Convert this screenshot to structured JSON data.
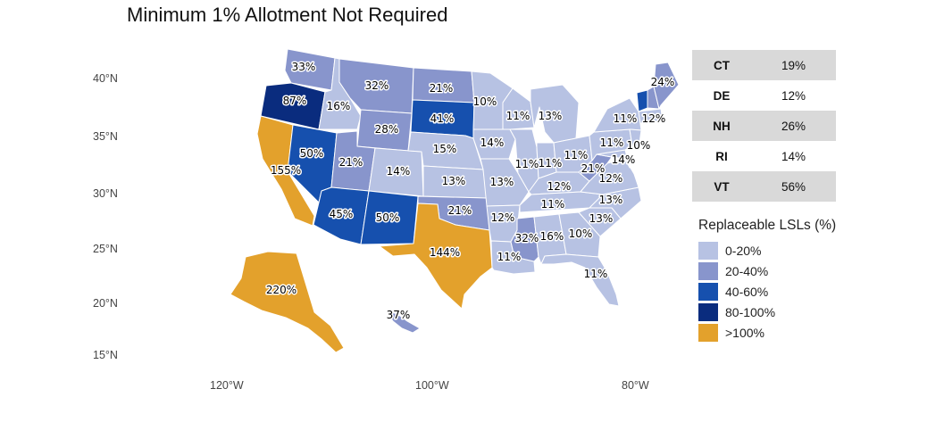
{
  "title": "Minimum 1% Allotment Not Required",
  "axes": {
    "y_ticks": [
      "40°N",
      "35°N",
      "30°N",
      "25°N",
      "20°N",
      "15°N"
    ],
    "x_ticks": [
      "120°W",
      "100°W",
      "80°W"
    ]
  },
  "colors": {
    "c0": "#b7c2e3",
    "c1": "#8895cc",
    "c2": "#1650ae",
    "c3": "#0a2c7e",
    "c4": "#e3a12c"
  },
  "states": [
    {
      "code": "WA",
      "label": "33%",
      "cls": "c1"
    },
    {
      "code": "OR",
      "label": "87%",
      "cls": "c3"
    },
    {
      "code": "CA",
      "label": "155%",
      "cls": "c4"
    },
    {
      "code": "ID",
      "label": "16%",
      "cls": "c0"
    },
    {
      "code": "NV",
      "label": "50%",
      "cls": "c2"
    },
    {
      "code": "MT",
      "label": "32%",
      "cls": "c1"
    },
    {
      "code": "WY",
      "label": "28%",
      "cls": "c1"
    },
    {
      "code": "UT",
      "label": "21%",
      "cls": "c1"
    },
    {
      "code": "AZ",
      "label": "45%",
      "cls": "c2"
    },
    {
      "code": "CO",
      "label": "14%",
      "cls": "c0"
    },
    {
      "code": "NM",
      "label": "50%",
      "cls": "c2"
    },
    {
      "code": "ND",
      "label": "21%",
      "cls": "c1"
    },
    {
      "code": "SD",
      "label": "41%",
      "cls": "c2"
    },
    {
      "code": "NE",
      "label": "15%",
      "cls": "c0"
    },
    {
      "code": "KS",
      "label": "13%",
      "cls": "c0"
    },
    {
      "code": "OK",
      "label": "21%",
      "cls": "c1"
    },
    {
      "code": "TX",
      "label": "144%",
      "cls": "c4"
    },
    {
      "code": "MN",
      "label": "10%",
      "cls": "c0"
    },
    {
      "code": "IA",
      "label": "14%",
      "cls": "c0"
    },
    {
      "code": "MO",
      "label": "13%",
      "cls": "c0"
    },
    {
      "code": "AR",
      "label": "12%",
      "cls": "c0"
    },
    {
      "code": "LA",
      "label": "11%",
      "cls": "c0"
    },
    {
      "code": "WI",
      "label": "11%",
      "cls": "c0"
    },
    {
      "code": "IL",
      "label": "11%",
      "cls": "c0"
    },
    {
      "code": "MI",
      "label": "13%",
      "cls": "c0"
    },
    {
      "code": "IN",
      "label": "11%",
      "cls": "c0"
    },
    {
      "code": "OH",
      "label": "11%",
      "cls": "c0"
    },
    {
      "code": "KY",
      "label": "12%",
      "cls": "c0"
    },
    {
      "code": "TN",
      "label": "11%",
      "cls": "c0"
    },
    {
      "code": "MS",
      "label": "32%",
      "cls": "c1"
    },
    {
      "code": "AL",
      "label": "16%",
      "cls": "c0"
    },
    {
      "code": "GA",
      "label": "10%",
      "cls": "c0"
    },
    {
      "code": "FL",
      "label": "11%",
      "cls": "c0"
    },
    {
      "code": "SC",
      "label": "13%",
      "cls": "c0"
    },
    {
      "code": "NC",
      "label": "13%",
      "cls": "c0"
    },
    {
      "code": "VA",
      "label": "12%",
      "cls": "c0"
    },
    {
      "code": "WV",
      "label": "21%",
      "cls": "c1"
    },
    {
      "code": "PA",
      "label": "11%",
      "cls": "c0"
    },
    {
      "code": "NY",
      "label": "11%",
      "cls": "c0"
    },
    {
      "code": "NJ",
      "label": "10%",
      "cls": "c0"
    },
    {
      "code": "MD",
      "label": "14%",
      "cls": "c0"
    },
    {
      "code": "MA",
      "label": "12%",
      "cls": "c0"
    },
    {
      "code": "VT",
      "label": "",
      "cls": "c2"
    },
    {
      "code": "NH",
      "label": "",
      "cls": "c1"
    },
    {
      "code": "ME",
      "label": "24%",
      "cls": "c1"
    },
    {
      "code": "AK",
      "label": "220%",
      "cls": "c4"
    },
    {
      "code": "HI",
      "label": "37%",
      "cls": "c1"
    }
  ],
  "small_states_table": [
    {
      "state": "CT",
      "value": "19%"
    },
    {
      "state": "DE",
      "value": "12%"
    },
    {
      "state": "NH",
      "value": "26%"
    },
    {
      "state": "RI",
      "value": "14%"
    },
    {
      "state": "VT",
      "value": "56%"
    }
  ],
  "legend": {
    "title": "Replaceable LSLs (%)",
    "items": [
      {
        "label": "0-20%",
        "color": "#b7c2e3"
      },
      {
        "label": "20-40%",
        "color": "#8895cc"
      },
      {
        "label": "40-60%",
        "color": "#1650ae"
      },
      {
        "label": "80-100%",
        "color": "#0a2c7e"
      },
      {
        "label": ">100%",
        "color": "#e3a12c"
      }
    ]
  }
}
